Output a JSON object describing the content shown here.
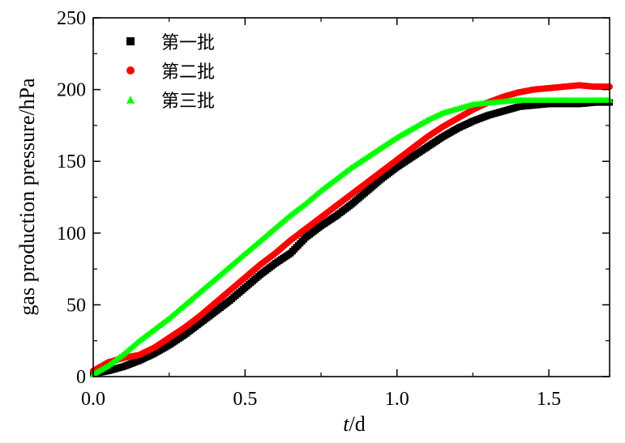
{
  "chart_data": {
    "type": "scatter",
    "xlabel_italic": "t",
    "xlabel_rest": "/d",
    "ylabel": "gas production pressure/hPa",
    "xlim": [
      0.0,
      1.7
    ],
    "ylim": [
      0,
      250
    ],
    "xticks": [
      0.0,
      0.5,
      1.0,
      1.5
    ],
    "xtick_labels": [
      "0.0",
      "0.5",
      "1.0",
      "1.5"
    ],
    "yticks": [
      0,
      50,
      100,
      150,
      200,
      250
    ],
    "ytick_labels": [
      "0",
      "50",
      "100",
      "150",
      "200",
      "250"
    ],
    "legend_position": "top-left",
    "grid": false,
    "series": [
      {
        "name": "第一批",
        "color": "#000000",
        "marker": "square",
        "x": [
          0.0,
          0.05,
          0.1,
          0.15,
          0.2,
          0.25,
          0.3,
          0.35,
          0.4,
          0.45,
          0.5,
          0.55,
          0.6,
          0.65,
          0.7,
          0.75,
          0.8,
          0.85,
          0.9,
          0.95,
          1.0,
          1.05,
          1.1,
          1.15,
          1.2,
          1.25,
          1.3,
          1.35,
          1.4,
          1.45,
          1.5,
          1.55,
          1.6,
          1.65,
          1.7
        ],
        "y": [
          2,
          4,
          7,
          11,
          16,
          22,
          29,
          37,
          45,
          53,
          62,
          71,
          79,
          86,
          97,
          105,
          112,
          120,
          129,
          138,
          146,
          153,
          160,
          167,
          173,
          178,
          182,
          185,
          188,
          189,
          190,
          190,
          190,
          191,
          191
        ]
      },
      {
        "name": "第二批",
        "color": "#ff0000",
        "marker": "circle",
        "x": [
          0.0,
          0.05,
          0.1,
          0.15,
          0.2,
          0.25,
          0.3,
          0.35,
          0.4,
          0.45,
          0.5,
          0.55,
          0.6,
          0.65,
          0.7,
          0.75,
          0.8,
          0.85,
          0.9,
          0.95,
          1.0,
          1.05,
          1.1,
          1.15,
          1.2,
          1.25,
          1.3,
          1.35,
          1.4,
          1.45,
          1.5,
          1.55,
          1.6,
          1.65,
          1.7
        ],
        "y": [
          4,
          10,
          13,
          15,
          20,
          27,
          34,
          42,
          51,
          60,
          69,
          78,
          86,
          95,
          103,
          111,
          119,
          127,
          135,
          143,
          151,
          159,
          167,
          174,
          180,
          186,
          191,
          195,
          198,
          200,
          201,
          202,
          203,
          202,
          202
        ]
      },
      {
        "name": "第三批",
        "color": "#00ff00",
        "marker": "triangle",
        "x": [
          0.0,
          0.05,
          0.1,
          0.15,
          0.2,
          0.25,
          0.3,
          0.35,
          0.4,
          0.45,
          0.5,
          0.55,
          0.6,
          0.65,
          0.7,
          0.75,
          0.8,
          0.85,
          0.9,
          0.95,
          1.0,
          1.05,
          1.1,
          1.15,
          1.2,
          1.25,
          1.3,
          1.35,
          1.4,
          1.45,
          1.5,
          1.55,
          1.6,
          1.65,
          1.7
        ],
        "y": [
          2,
          8,
          16,
          25,
          33,
          41,
          50,
          59,
          68,
          77,
          86,
          95,
          104,
          113,
          121,
          130,
          138,
          146,
          153,
          160,
          167,
          173,
          179,
          184,
          187,
          190,
          191,
          192,
          193,
          193,
          193,
          193,
          193,
          193,
          193
        ]
      }
    ]
  }
}
